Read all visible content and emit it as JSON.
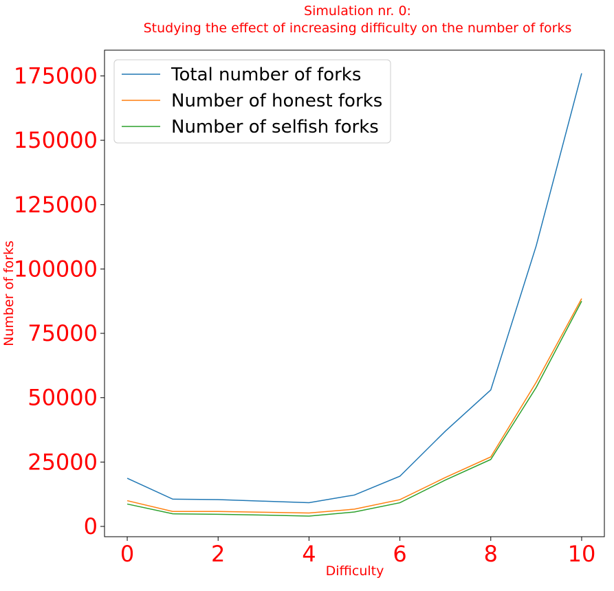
{
  "chart_data": {
    "type": "line",
    "title_line1": "Simulation nr. 0:",
    "title_line2": "Studying the effect of increasing difficulty on the number of forks",
    "xlabel": "Difficulty",
    "ylabel": "Number of forks",
    "x": [
      0,
      1,
      2,
      3,
      4,
      5,
      6,
      7,
      8,
      9,
      10
    ],
    "xlim": [
      -0.5,
      10.5
    ],
    "ylim": [
      -4000,
      185000
    ],
    "x_ticks": [
      0,
      2,
      4,
      6,
      8,
      10
    ],
    "x_tick_labels": [
      "0",
      "2",
      "4",
      "6",
      "8",
      "10"
    ],
    "y_ticks": [
      0,
      25000,
      50000,
      75000,
      100000,
      125000,
      150000,
      175000
    ],
    "y_tick_labels": [
      "0",
      "25000",
      "50000",
      "75000",
      "100000",
      "125000",
      "150000",
      "175000"
    ],
    "legend_position": "top-left",
    "grid": false,
    "series": [
      {
        "name": "Total number of forks",
        "color": "#1f77b4",
        "values": [
          18700,
          10600,
          10400,
          9800,
          9200,
          12200,
          19500,
          37000,
          53000,
          109000,
          176000
        ]
      },
      {
        "name": "Number of honest forks",
        "color": "#ff7f0e",
        "values": [
          10000,
          5800,
          5800,
          5500,
          5200,
          6700,
          10400,
          19000,
          27000,
          56000,
          88500
        ]
      },
      {
        "name": "Number of selfish forks",
        "color": "#2ca02c",
        "values": [
          8700,
          4900,
          4700,
          4400,
          4000,
          5600,
          9200,
          18000,
          26000,
          54000,
          87500
        ]
      }
    ]
  }
}
